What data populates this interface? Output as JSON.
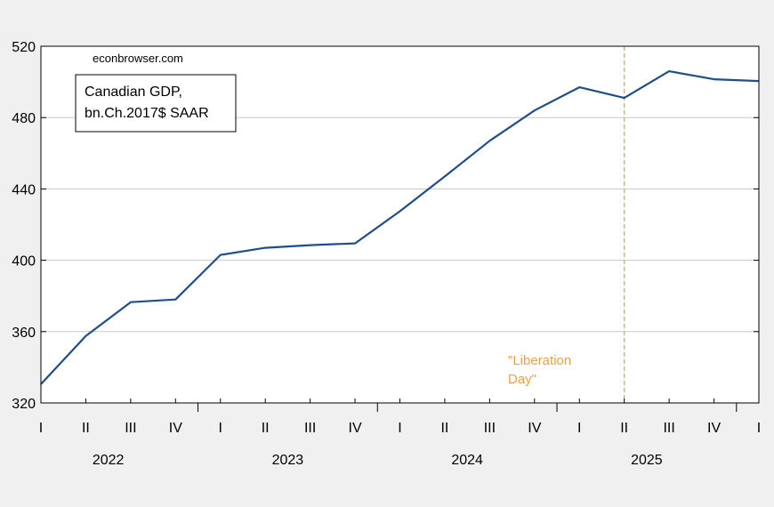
{
  "chart_data": {
    "type": "line",
    "source_label": "econbrowser.com",
    "legend_lines": [
      "Canadian GDP,",
      "bn.Ch.2017$ SAAR"
    ],
    "ylim": [
      320,
      520
    ],
    "yticks": [
      "320",
      "360",
      "400",
      "440",
      "480",
      "520"
    ],
    "quarter_labels": [
      "I",
      "II",
      "III",
      "IV",
      "I",
      "II",
      "III",
      "IV",
      "I",
      "II",
      "III",
      "IV",
      "I",
      "II",
      "III",
      "IV",
      "I"
    ],
    "years": [
      "2022",
      "2023",
      "2024",
      "2025"
    ],
    "x": [
      "2022Q1",
      "2022Q2",
      "2022Q3",
      "2022Q4",
      "2023Q1",
      "2023Q2",
      "2023Q3",
      "2023Q4",
      "2024Q1",
      "2024Q2",
      "2024Q3",
      "2024Q4",
      "2025Q1",
      "2025Q2",
      "2025Q3",
      "2025Q4",
      "2026Q1"
    ],
    "series": [
      {
        "color": "#1f4e8c",
        "values": [
          330.5,
          357.5,
          376.5,
          378,
          403,
          407,
          408.5,
          409.5,
          427.5,
          447,
          467,
          484,
          497,
          491,
          506,
          501.5,
          500.5
        ]
      }
    ],
    "annotation": {
      "lines": [
        "\"Liberation",
        "Day\""
      ],
      "x": "2025Q2",
      "color": "#f0a040"
    },
    "grid": true
  }
}
